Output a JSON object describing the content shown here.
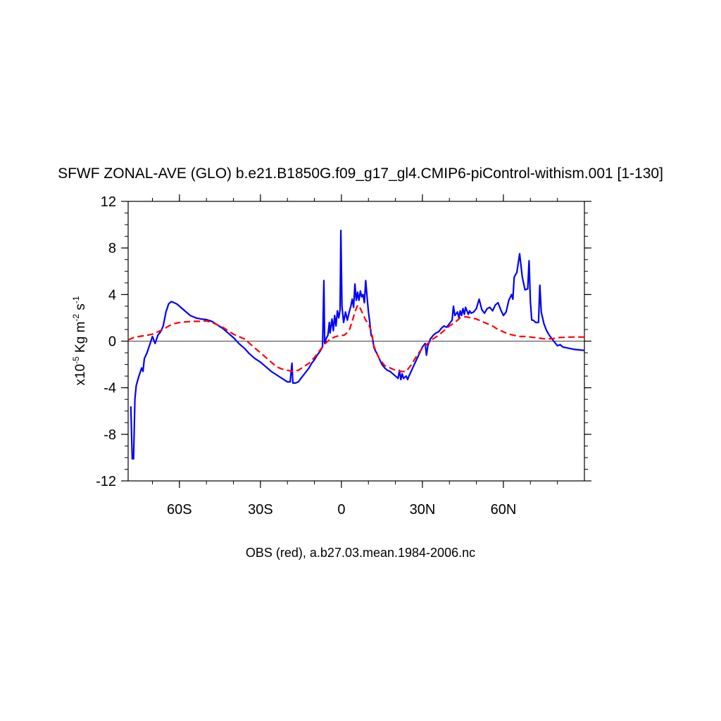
{
  "chart_data": {
    "type": "line",
    "title": "SFWF ZONAL-AVE (GLO) b.e21.B1850G.f09_g17_gl4.CMIP6-piControl-withism.001 [1-130]",
    "ylabel": {
      "prefix": "x10",
      "exp1": "-5",
      "mid": " Kg m",
      "exp2": "-2",
      "mid2": " s",
      "exp3": "-1"
    },
    "caption": "OBS (red), a.b27.03.mean.1984-2006.nc",
    "xlim": [
      -79,
      90
    ],
    "ylim": [
      -12,
      12
    ],
    "x_ticks": [
      {
        "value": -60,
        "label": "60S"
      },
      {
        "value": -30,
        "label": "30S"
      },
      {
        "value": 0,
        "label": "0"
      },
      {
        "value": 30,
        "label": "30N"
      },
      {
        "value": 60,
        "label": "60N"
      }
    ],
    "y_ticks": [
      {
        "value": 12,
        "label": "12"
      },
      {
        "value": 8,
        "label": "8"
      },
      {
        "value": 4,
        "label": "4"
      },
      {
        "value": 0,
        "label": "0"
      },
      {
        "value": -4,
        "label": "-4"
      },
      {
        "value": -8,
        "label": "-8"
      },
      {
        "value": -12,
        "label": "-12"
      }
    ],
    "zero_line": true,
    "series": [
      {
        "style": "solid",
        "color": "#0000ff",
        "points": [
          [
            -78,
            -5.6
          ],
          [
            -77.5,
            -10.1
          ],
          [
            -77,
            -10.1
          ],
          [
            -76.5,
            -5.0
          ],
          [
            -76,
            -3.8
          ],
          [
            -75,
            -3.0
          ],
          [
            -74,
            -2.3
          ],
          [
            -73.5,
            -2.6
          ],
          [
            -73,
            -1.5
          ],
          [
            -72,
            -1.0
          ],
          [
            -71,
            -0.3
          ],
          [
            -70,
            0.4
          ],
          [
            -69,
            -0.2
          ],
          [
            -68,
            0.5
          ],
          [
            -67,
            0.8
          ],
          [
            -66,
            1.3
          ],
          [
            -65,
            2.5
          ],
          [
            -64,
            3.2
          ],
          [
            -63,
            3.4
          ],
          [
            -62,
            3.3
          ],
          [
            -61,
            3.2
          ],
          [
            -60,
            3.0
          ],
          [
            -58,
            2.6
          ],
          [
            -56,
            2.2
          ],
          [
            -54,
            2.0
          ],
          [
            -52,
            1.9
          ],
          [
            -50,
            1.85
          ],
          [
            -48,
            1.7
          ],
          [
            -46,
            1.4
          ],
          [
            -44,
            1.1
          ],
          [
            -42,
            0.7
          ],
          [
            -40,
            0.3
          ],
          [
            -38,
            -0.2
          ],
          [
            -36,
            -0.6
          ],
          [
            -34,
            -1.1
          ],
          [
            -32,
            -1.5
          ],
          [
            -30,
            -1.8
          ],
          [
            -28,
            -2.2
          ],
          [
            -26,
            -2.6
          ],
          [
            -24,
            -2.9
          ],
          [
            -22,
            -3.2
          ],
          [
            -20,
            -3.5
          ],
          [
            -19,
            -3.5
          ],
          [
            -18.3,
            -1.9
          ],
          [
            -18,
            -3.6
          ],
          [
            -17,
            -3.6
          ],
          [
            -16,
            -3.5
          ],
          [
            -15,
            -3.2
          ],
          [
            -14,
            -2.9
          ],
          [
            -13,
            -2.6
          ],
          [
            -12,
            -2.3
          ],
          [
            -11,
            -1.9
          ],
          [
            -10,
            -1.6
          ],
          [
            -9,
            -1.2
          ],
          [
            -8,
            -0.9
          ],
          [
            -7,
            -0.5
          ],
          [
            -6.5,
            5.2
          ],
          [
            -6.2,
            -0.2
          ],
          [
            -5.5,
            0.3
          ],
          [
            -5,
            0.5
          ],
          [
            -4.5,
            1.6
          ],
          [
            -4.2,
            0.7
          ],
          [
            -3.5,
            1.9
          ],
          [
            -3,
            0.9
          ],
          [
            -2.5,
            2.2
          ],
          [
            -2,
            1.3
          ],
          [
            -1.5,
            2.6
          ],
          [
            -1,
            2.0
          ],
          [
            -0.5,
            2.7
          ],
          [
            -0.2,
            9.5
          ],
          [
            0.2,
            3.0
          ],
          [
            0.8,
            1.6
          ],
          [
            1.5,
            2.5
          ],
          [
            2.2,
            1.8
          ],
          [
            3,
            2.6
          ],
          [
            3.5,
            3.0
          ],
          [
            4,
            3.6
          ],
          [
            4.5,
            2.9
          ],
          [
            5,
            4.9
          ],
          [
            5.5,
            3.5
          ],
          [
            6,
            4.2
          ],
          [
            6.5,
            3.5
          ],
          [
            7,
            4.3
          ],
          [
            7.5,
            3.8
          ],
          [
            8,
            4.0
          ],
          [
            8.5,
            3.3
          ],
          [
            9,
            5.2
          ],
          [
            9.5,
            3.8
          ],
          [
            10,
            2.5
          ],
          [
            10.5,
            1.6
          ],
          [
            11,
            0.5
          ],
          [
            11.5,
            0.3
          ],
          [
            12,
            -0.5
          ],
          [
            12.5,
            -0.8
          ],
          [
            13,
            -1.0
          ],
          [
            14,
            -1.5
          ],
          [
            15,
            -2.0
          ],
          [
            16,
            -2.3
          ],
          [
            17,
            -2.5
          ],
          [
            18,
            -2.6
          ],
          [
            19,
            -2.8
          ],
          [
            20,
            -3.0
          ],
          [
            21,
            -3.2
          ],
          [
            21.5,
            -2.5
          ],
          [
            22,
            -3.3
          ],
          [
            22.5,
            -2.8
          ],
          [
            23,
            -3.2
          ],
          [
            24,
            -3.0
          ],
          [
            24.5,
            -3.3
          ],
          [
            25,
            -3.0
          ],
          [
            26,
            -2.5
          ],
          [
            27,
            -2.0
          ],
          [
            28,
            -1.5
          ],
          [
            29,
            -1.0
          ],
          [
            30,
            -0.5
          ],
          [
            31,
            -0.2
          ],
          [
            31.5,
            -1.2
          ],
          [
            32,
            -0.4
          ],
          [
            33,
            0.2
          ],
          [
            34,
            0.5
          ],
          [
            35,
            0.7
          ],
          [
            36,
            0.8
          ],
          [
            37,
            1.1
          ],
          [
            38,
            1.3
          ],
          [
            39,
            1.2
          ],
          [
            40,
            1.5
          ],
          [
            41,
            1.8
          ],
          [
            41.5,
            3.0
          ],
          [
            42,
            2.2
          ],
          [
            43,
            2.5
          ],
          [
            43.5,
            2.0
          ],
          [
            44,
            2.6
          ],
          [
            44.5,
            2.2
          ],
          [
            45,
            2.8
          ],
          [
            45.5,
            2.3
          ],
          [
            46,
            2.9
          ],
          [
            47,
            2.3
          ],
          [
            47.5,
            2.6
          ],
          [
            48,
            2.4
          ],
          [
            49,
            2.5
          ],
          [
            50,
            2.8
          ],
          [
            51,
            3.6
          ],
          [
            52,
            2.7
          ],
          [
            53,
            2.4
          ],
          [
            54,
            2.8
          ],
          [
            55,
            2.9
          ],
          [
            56,
            2.6
          ],
          [
            57,
            3.1
          ],
          [
            58,
            3.3
          ],
          [
            59,
            2.7
          ],
          [
            60,
            2.2
          ],
          [
            61,
            2.5
          ],
          [
            62,
            3.5
          ],
          [
            63,
            4.0
          ],
          [
            63.5,
            3.6
          ],
          [
            64,
            5.5
          ],
          [
            65,
            5.9
          ],
          [
            66,
            7.5
          ],
          [
            66.5,
            6.5
          ],
          [
            67,
            5.5
          ],
          [
            68,
            4.4
          ],
          [
            69,
            4.5
          ],
          [
            69.5,
            6.9
          ],
          [
            70,
            3.4
          ],
          [
            70.5,
            1.8
          ],
          [
            71,
            1.8
          ],
          [
            72,
            1.6
          ],
          [
            73,
            1.6
          ],
          [
            73.5,
            4.8
          ],
          [
            74,
            2.5
          ],
          [
            75,
            1.5
          ],
          [
            76,
            0.9
          ],
          [
            77,
            0.5
          ],
          [
            78,
            0.2
          ],
          [
            79,
            -0.1
          ],
          [
            80,
            -0.4
          ],
          [
            81,
            -0.3
          ],
          [
            82,
            -0.5
          ],
          [
            84,
            -0.6
          ],
          [
            86,
            -0.7
          ],
          [
            88,
            -0.75
          ],
          [
            90,
            -0.8
          ]
        ]
      },
      {
        "style": "dashed",
        "color": "#ff0000",
        "points": [
          [
            -79,
            0.1
          ],
          [
            -77,
            0.3
          ],
          [
            -75,
            0.4
          ],
          [
            -72,
            0.5
          ],
          [
            -70,
            0.6
          ],
          [
            -68,
            0.8
          ],
          [
            -66,
            1.0
          ],
          [
            -64,
            1.3
          ],
          [
            -62,
            1.5
          ],
          [
            -60,
            1.6
          ],
          [
            -58,
            1.65
          ],
          [
            -55,
            1.7
          ],
          [
            -52,
            1.7
          ],
          [
            -50,
            1.75
          ],
          [
            -48,
            1.6
          ],
          [
            -46,
            1.4
          ],
          [
            -44,
            1.2
          ],
          [
            -42,
            0.9
          ],
          [
            -40,
            0.6
          ],
          [
            -38,
            0.4
          ],
          [
            -36,
            0.2
          ],
          [
            -34,
            -0.2
          ],
          [
            -32,
            -0.6
          ],
          [
            -30,
            -1.0
          ],
          [
            -28,
            -1.4
          ],
          [
            -26,
            -1.8
          ],
          [
            -24,
            -2.2
          ],
          [
            -22,
            -2.4
          ],
          [
            -20,
            -2.5
          ],
          [
            -18,
            -2.6
          ],
          [
            -16,
            -2.5
          ],
          [
            -14,
            -2.2
          ],
          [
            -12,
            -1.9
          ],
          [
            -10,
            -1.4
          ],
          [
            -8,
            -0.8
          ],
          [
            -6,
            -0.2
          ],
          [
            -4,
            0.2
          ],
          [
            -2,
            0.4
          ],
          [
            0,
            0.5
          ],
          [
            1,
            0.5
          ],
          [
            2,
            0.7
          ],
          [
            3,
            1.0
          ],
          [
            4,
            1.7
          ],
          [
            5,
            2.5
          ],
          [
            6,
            3.1
          ],
          [
            7,
            2.8
          ],
          [
            8,
            2.3
          ],
          [
            9,
            1.8
          ],
          [
            10,
            1.5
          ],
          [
            11,
            0.9
          ],
          [
            11.5,
            0.3
          ],
          [
            12,
            -0.4
          ],
          [
            13,
            -1.0
          ],
          [
            14,
            -1.5
          ],
          [
            15,
            -1.8
          ],
          [
            16,
            -2.1
          ],
          [
            18,
            -2.3
          ],
          [
            20,
            -2.5
          ],
          [
            22,
            -2.6
          ],
          [
            24,
            -2.6
          ],
          [
            25,
            -2.3
          ],
          [
            26,
            -2.0
          ],
          [
            27,
            -1.6
          ],
          [
            28,
            -1.2
          ],
          [
            29,
            -0.9
          ],
          [
            30,
            -0.6
          ],
          [
            32,
            -0.2
          ],
          [
            34,
            0.2
          ],
          [
            36,
            0.5
          ],
          [
            38,
            0.9
          ],
          [
            40,
            1.3
          ],
          [
            42,
            1.6
          ],
          [
            44,
            2.0
          ],
          [
            46,
            2.1
          ],
          [
            48,
            2.0
          ],
          [
            50,
            1.9
          ],
          [
            52,
            1.7
          ],
          [
            54,
            1.5
          ],
          [
            56,
            1.3
          ],
          [
            58,
            1.0
          ],
          [
            60,
            0.8
          ],
          [
            62,
            0.6
          ],
          [
            64,
            0.5
          ],
          [
            66,
            0.4
          ],
          [
            68,
            0.4
          ],
          [
            70,
            0.35
          ],
          [
            72,
            0.3
          ],
          [
            75,
            0.2
          ],
          [
            78,
            0.2
          ],
          [
            80,
            0.3
          ],
          [
            85,
            0.35
          ],
          [
            90,
            0.35
          ]
        ]
      }
    ]
  }
}
